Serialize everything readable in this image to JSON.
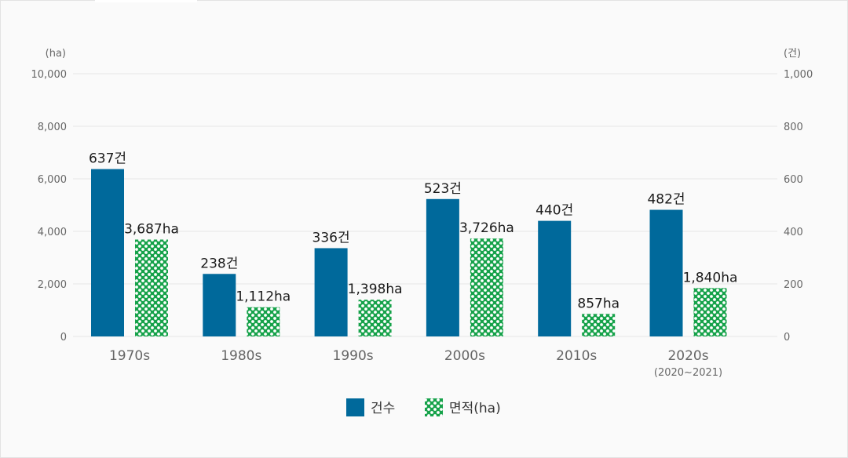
{
  "chart_data": {
    "type": "bar",
    "categories": [
      "1970s",
      "1980s",
      "1990s",
      "2000s",
      "2010s",
      "2020s"
    ],
    "category_sublabels": [
      "",
      "",
      "",
      "",
      "",
      "(2020~2021)"
    ],
    "series": [
      {
        "name": "건수",
        "axis": "right",
        "values": [
          637,
          238,
          336,
          523,
          440,
          482
        ],
        "labels": [
          "637건",
          "238건",
          "336건",
          "523건",
          "440건",
          "482건"
        ]
      },
      {
        "name": "면적(ha)",
        "axis": "left",
        "values": [
          3687,
          1112,
          1398,
          3726,
          857,
          1840
        ],
        "labels": [
          "3,687ha",
          "1,112ha",
          "1,398ha",
          "3,726ha",
          "857ha",
          "1,840ha"
        ]
      }
    ],
    "left_axis": {
      "unit": "(ha)",
      "ylim": [
        0,
        10000
      ],
      "ticks": [
        "10,000",
        "8,000",
        "6,000",
        "4,000",
        "2,000",
        "0"
      ],
      "tick_values": [
        10000,
        8000,
        6000,
        4000,
        2000,
        0
      ]
    },
    "right_axis": {
      "unit": "(건)",
      "ylim": [
        0,
        1000
      ],
      "ticks": [
        "1,000",
        "800",
        "600",
        "400",
        "200",
        "0"
      ],
      "tick_values": [
        1000,
        800,
        600,
        400,
        200,
        0
      ]
    },
    "legend": {
      "placement": "bottom-center",
      "items": [
        "건수",
        "면적(ha)"
      ]
    },
    "grid": true,
    "colors": {
      "count": "#00699b",
      "area": "#16a24a",
      "grid": "#e6e6e6",
      "tick": "#666666",
      "label": "#1a1a1a"
    }
  }
}
